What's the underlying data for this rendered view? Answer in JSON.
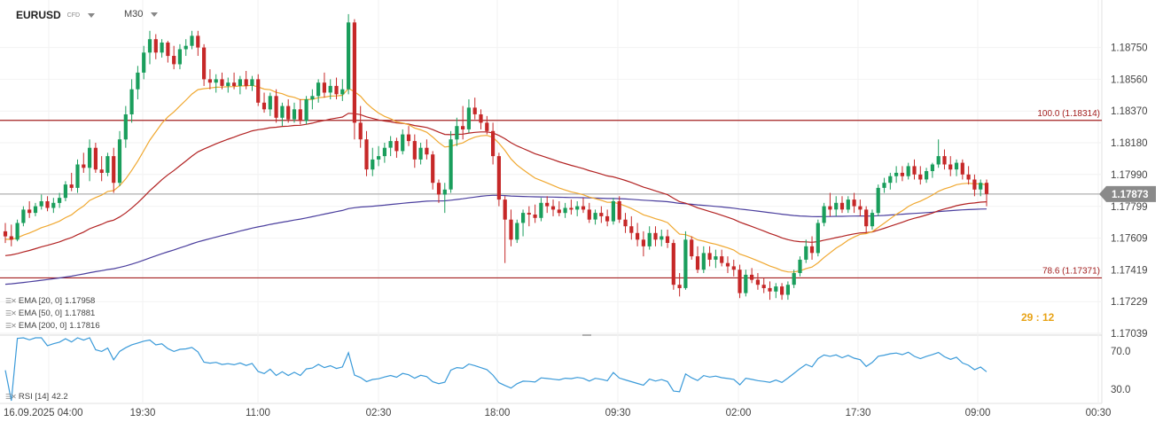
{
  "header": {
    "symbol": "EURUSD",
    "instrument_type": "CFD",
    "timeframe": "M30"
  },
  "indicators": [
    {
      "label": "EMA [20, 0]",
      "value": "1.17958",
      "color": "#f0a830"
    },
    {
      "label": "EMA [50, 0]",
      "value": "1.17881",
      "color": "#b22222"
    },
    {
      "label": "EMA [200, 0]",
      "value": "1.17816",
      "color": "#4b3f9e"
    }
  ],
  "rsi": {
    "label": "RSI [14]",
    "value": "42.2",
    "color": "#3a9ad9"
  },
  "countdown": "29 : 12",
  "colors": {
    "up": "#1a9e5c",
    "down": "#c62828",
    "fib": "#a31f1f",
    "current_line": "#9e9e9e"
  },
  "chart_data": {
    "type": "candlestick",
    "y_ticks": [
      "1.18750",
      "1.18560",
      "1.18370",
      "1.18180",
      "1.17990",
      "1.17799",
      "1.17609",
      "1.17419",
      "1.17229",
      "1.17039"
    ],
    "y_range": [
      1.17039,
      1.18939
    ],
    "x_ticks": [
      "16.09.2025 04:00",
      "19:30",
      "11:00",
      "02:30",
      "18:00",
      "09:30",
      "02:00",
      "17:30",
      "09:00",
      "00:30"
    ],
    "current_price": "1.17873",
    "levels": [
      {
        "label": "100.0 (1.18314)",
        "value": 1.18314
      },
      {
        "label": "78.6 (1.17371)",
        "value": 1.17371
      }
    ],
    "rsi_ticks": [
      "70.0",
      "30.0"
    ],
    "rsi_range": [
      18,
      84
    ],
    "candles": [
      [
        1.1765,
        1.177,
        1.1758,
        1.1762
      ],
      [
        1.1762,
        1.1769,
        1.1756,
        1.176
      ],
      [
        1.176,
        1.1772,
        1.1759,
        1.177
      ],
      [
        1.177,
        1.178,
        1.1768,
        1.1778
      ],
      [
        1.1778,
        1.1783,
        1.1773,
        1.1776
      ],
      [
        1.1776,
        1.1782,
        1.1774,
        1.178
      ],
      [
        1.178,
        1.1787,
        1.1778,
        1.1783
      ],
      [
        1.1783,
        1.1786,
        1.1777,
        1.1779
      ],
      [
        1.1779,
        1.1785,
        1.1776,
        1.1782
      ],
      [
        1.1782,
        1.1788,
        1.1779,
        1.1785
      ],
      [
        1.1785,
        1.1795,
        1.1783,
        1.1793
      ],
      [
        1.1793,
        1.18,
        1.1789,
        1.1791
      ],
      [
        1.1791,
        1.1808,
        1.1788,
        1.1805
      ],
      [
        1.1805,
        1.1812,
        1.18,
        1.1803
      ],
      [
        1.1803,
        1.182,
        1.1795,
        1.1815
      ],
      [
        1.1815,
        1.1818,
        1.18,
        1.1802
      ],
      [
        1.1802,
        1.181,
        1.1795,
        1.18
      ],
      [
        1.18,
        1.1812,
        1.1798,
        1.181
      ],
      [
        1.181,
        1.1815,
        1.1788,
        1.1794
      ],
      [
        1.1794,
        1.1825,
        1.1792,
        1.182
      ],
      [
        1.182,
        1.184,
        1.1815,
        1.1835
      ],
      [
        1.1835,
        1.1856,
        1.183,
        1.185
      ],
      [
        1.185,
        1.1864,
        1.1844,
        1.186
      ],
      [
        1.186,
        1.1876,
        1.1856,
        1.1872
      ],
      [
        1.1872,
        1.1885,
        1.1865,
        1.188
      ],
      [
        1.188,
        1.1883,
        1.1868,
        1.1872
      ],
      [
        1.1872,
        1.188,
        1.1869,
        1.1878
      ],
      [
        1.1878,
        1.1879,
        1.1866,
        1.187
      ],
      [
        1.187,
        1.1876,
        1.1862,
        1.1865
      ],
      [
        1.1865,
        1.1877,
        1.1862,
        1.1874
      ],
      [
        1.1874,
        1.188,
        1.187,
        1.1876
      ],
      [
        1.1876,
        1.1885,
        1.1874,
        1.1882
      ],
      [
        1.1882,
        1.1885,
        1.187,
        1.1875
      ],
      [
        1.1875,
        1.1877,
        1.1852,
        1.1856
      ],
      [
        1.1856,
        1.1862,
        1.185,
        1.1854
      ],
      [
        1.1854,
        1.1859,
        1.1848,
        1.1856
      ],
      [
        1.1856,
        1.186,
        1.185,
        1.1852
      ],
      [
        1.1852,
        1.1857,
        1.1848,
        1.1854
      ],
      [
        1.1854,
        1.186,
        1.185,
        1.1852
      ],
      [
        1.1852,
        1.1858,
        1.1847,
        1.1856
      ],
      [
        1.1856,
        1.1861,
        1.185,
        1.1852
      ],
      [
        1.1852,
        1.1858,
        1.1849,
        1.1856
      ],
      [
        1.1856,
        1.1859,
        1.184,
        1.1842
      ],
      [
        1.1842,
        1.1848,
        1.1836,
        1.1838
      ],
      [
        1.1838,
        1.1848,
        1.1834,
        1.1846
      ],
      [
        1.1846,
        1.185,
        1.183,
        1.1833
      ],
      [
        1.1833,
        1.1842,
        1.1828,
        1.184
      ],
      [
        1.184,
        1.1844,
        1.183,
        1.1832
      ],
      [
        1.1832,
        1.1842,
        1.183,
        1.1838
      ],
      [
        1.1838,
        1.1844,
        1.1829,
        1.1831
      ],
      [
        1.1831,
        1.1846,
        1.1829,
        1.1844
      ],
      [
        1.1844,
        1.185,
        1.1838,
        1.1846
      ],
      [
        1.1846,
        1.1856,
        1.1842,
        1.1854
      ],
      [
        1.1854,
        1.186,
        1.1845,
        1.1848
      ],
      [
        1.1848,
        1.1856,
        1.1844,
        1.1852
      ],
      [
        1.1852,
        1.1857,
        1.1844,
        1.1847
      ],
      [
        1.1847,
        1.1856,
        1.1843,
        1.185
      ],
      [
        1.185,
        1.1895,
        1.1847,
        1.189
      ],
      [
        1.189,
        1.1892,
        1.182,
        1.183
      ],
      [
        1.183,
        1.184,
        1.1815,
        1.182
      ],
      [
        1.182,
        1.1825,
        1.1798,
        1.1802
      ],
      [
        1.1802,
        1.1815,
        1.1798,
        1.1808
      ],
      [
        1.1808,
        1.1816,
        1.1804,
        1.181
      ],
      [
        1.181,
        1.1818,
        1.1806,
        1.1815
      ],
      [
        1.1815,
        1.1822,
        1.181,
        1.1819
      ],
      [
        1.1819,
        1.1821,
        1.1809,
        1.1813
      ],
      [
        1.1813,
        1.1826,
        1.1811,
        1.1823
      ],
      [
        1.1823,
        1.1828,
        1.1816,
        1.1819
      ],
      [
        1.1819,
        1.1823,
        1.1803,
        1.1808
      ],
      [
        1.1808,
        1.1818,
        1.1805,
        1.1815
      ],
      [
        1.1815,
        1.182,
        1.1808,
        1.1811
      ],
      [
        1.1811,
        1.1813,
        1.179,
        1.1794
      ],
      [
        1.1794,
        1.1796,
        1.1782,
        1.1787
      ],
      [
        1.1787,
        1.1794,
        1.1776,
        1.179
      ],
      [
        1.179,
        1.1825,
        1.1788,
        1.182
      ],
      [
        1.182,
        1.1833,
        1.1816,
        1.1828
      ],
      [
        1.1828,
        1.184,
        1.182,
        1.1826
      ],
      [
        1.1826,
        1.1844,
        1.1824,
        1.1839
      ],
      [
        1.1839,
        1.1845,
        1.1832,
        1.1835
      ],
      [
        1.1835,
        1.1838,
        1.1826,
        1.183
      ],
      [
        1.183,
        1.1834,
        1.1823,
        1.1825
      ],
      [
        1.1825,
        1.183,
        1.1805,
        1.181
      ],
      [
        1.181,
        1.1812,
        1.178,
        1.1784
      ],
      [
        1.1784,
        1.1786,
        1.1746,
        1.1772
      ],
      [
        1.1772,
        1.1778,
        1.1756,
        1.176
      ],
      [
        1.176,
        1.1772,
        1.1758,
        1.177
      ],
      [
        1.177,
        1.1778,
        1.1762,
        1.1776
      ],
      [
        1.1776,
        1.178,
        1.1768,
        1.1775
      ],
      [
        1.1775,
        1.1781,
        1.177,
        1.1773
      ],
      [
        1.1773,
        1.1785,
        1.1771,
        1.1782
      ],
      [
        1.1782,
        1.1786,
        1.1776,
        1.178
      ],
      [
        1.178,
        1.1784,
        1.1774,
        1.1778
      ],
      [
        1.1778,
        1.1783,
        1.1774,
        1.1776
      ],
      [
        1.1776,
        1.1782,
        1.1773,
        1.1779
      ],
      [
        1.1779,
        1.1784,
        1.1775,
        1.1778
      ],
      [
        1.1778,
        1.1783,
        1.1774,
        1.178
      ],
      [
        1.178,
        1.1785,
        1.1776,
        1.1778
      ],
      [
        1.1778,
        1.1782,
        1.177,
        1.1772
      ],
      [
        1.1772,
        1.1778,
        1.1769,
        1.1776
      ],
      [
        1.1776,
        1.178,
        1.177,
        1.1774
      ],
      [
        1.1774,
        1.1778,
        1.1768,
        1.1771
      ],
      [
        1.1771,
        1.1785,
        1.1769,
        1.1783
      ],
      [
        1.1783,
        1.1786,
        1.177,
        1.1772
      ],
      [
        1.1772,
        1.1776,
        1.1764,
        1.1768
      ],
      [
        1.1768,
        1.1774,
        1.176,
        1.1764
      ],
      [
        1.1764,
        1.177,
        1.1756,
        1.176
      ],
      [
        1.176,
        1.1765,
        1.175,
        1.1756
      ],
      [
        1.1756,
        1.1768,
        1.1754,
        1.1764
      ],
      [
        1.1764,
        1.1768,
        1.1756,
        1.176
      ],
      [
        1.176,
        1.1766,
        1.1756,
        1.1762
      ],
      [
        1.1762,
        1.1766,
        1.1755,
        1.1758
      ],
      [
        1.1758,
        1.176,
        1.173,
        1.1733
      ],
      [
        1.1733,
        1.174,
        1.1726,
        1.1731
      ],
      [
        1.1731,
        1.1765,
        1.173,
        1.176
      ],
      [
        1.176,
        1.1762,
        1.1748,
        1.175
      ],
      [
        1.175,
        1.1756,
        1.174,
        1.1742
      ],
      [
        1.1742,
        1.1756,
        1.174,
        1.1752
      ],
      [
        1.1752,
        1.1756,
        1.1744,
        1.1748
      ],
      [
        1.1748,
        1.1754,
        1.1743,
        1.175
      ],
      [
        1.175,
        1.1754,
        1.1744,
        1.1746
      ],
      [
        1.1746,
        1.175,
        1.174,
        1.1744
      ],
      [
        1.1744,
        1.1748,
        1.1738,
        1.1742
      ],
      [
        1.1742,
        1.1745,
        1.1725,
        1.1728
      ],
      [
        1.1728,
        1.1742,
        1.1726,
        1.1739
      ],
      [
        1.1739,
        1.1743,
        1.1734,
        1.1736
      ],
      [
        1.1736,
        1.174,
        1.173,
        1.1733
      ],
      [
        1.1733,
        1.1737,
        1.1728,
        1.1731
      ],
      [
        1.1731,
        1.1735,
        1.1724,
        1.1729
      ],
      [
        1.1729,
        1.1734,
        1.1725,
        1.1732
      ],
      [
        1.1732,
        1.1734,
        1.1724,
        1.1727
      ],
      [
        1.1727,
        1.1735,
        1.1724,
        1.1733
      ],
      [
        1.1733,
        1.1742,
        1.1731,
        1.174
      ],
      [
        1.174,
        1.175,
        1.1738,
        1.1748
      ],
      [
        1.1748,
        1.176,
        1.1746,
        1.1756
      ],
      [
        1.1756,
        1.1762,
        1.1748,
        1.1752
      ],
      [
        1.1752,
        1.1772,
        1.175,
        1.177
      ],
      [
        1.177,
        1.1782,
        1.1768,
        1.178
      ],
      [
        1.178,
        1.1788,
        1.1774,
        1.1778
      ],
      [
        1.1778,
        1.1786,
        1.1774,
        1.1782
      ],
      [
        1.1782,
        1.1786,
        1.1776,
        1.1778
      ],
      [
        1.1778,
        1.1786,
        1.1776,
        1.1784
      ],
      [
        1.1784,
        1.1788,
        1.1776,
        1.178
      ],
      [
        1.178,
        1.1784,
        1.1774,
        1.1778
      ],
      [
        1.1778,
        1.178,
        1.1764,
        1.1768
      ],
      [
        1.1768,
        1.1778,
        1.1766,
        1.1776
      ],
      [
        1.1776,
        1.1793,
        1.1774,
        1.1791
      ],
      [
        1.1791,
        1.1797,
        1.1788,
        1.1794
      ],
      [
        1.1794,
        1.18,
        1.179,
        1.1798
      ],
      [
        1.1798,
        1.1804,
        1.1794,
        1.18
      ],
      [
        1.18,
        1.1804,
        1.1795,
        1.1798
      ],
      [
        1.1798,
        1.1806,
        1.1796,
        1.1804
      ],
      [
        1.1804,
        1.1808,
        1.1796,
        1.1799
      ],
      [
        1.1799,
        1.1804,
        1.1793,
        1.1796
      ],
      [
        1.1796,
        1.1803,
        1.1794,
        1.1801
      ],
      [
        1.1801,
        1.1806,
        1.1797,
        1.1805
      ],
      [
        1.1805,
        1.182,
        1.1803,
        1.181
      ],
      [
        1.181,
        1.1814,
        1.1802,
        1.1805
      ],
      [
        1.1805,
        1.181,
        1.1798,
        1.1802
      ],
      [
        1.1802,
        1.1808,
        1.1798,
        1.1806
      ],
      [
        1.1806,
        1.1808,
        1.1796,
        1.1799
      ],
      [
        1.1799,
        1.1804,
        1.1793,
        1.1796
      ],
      [
        1.1796,
        1.1799,
        1.1786,
        1.179
      ],
      [
        1.179,
        1.1796,
        1.1786,
        1.1794
      ],
      [
        1.1794,
        1.1796,
        1.178,
        1.17873
      ]
    ]
  }
}
